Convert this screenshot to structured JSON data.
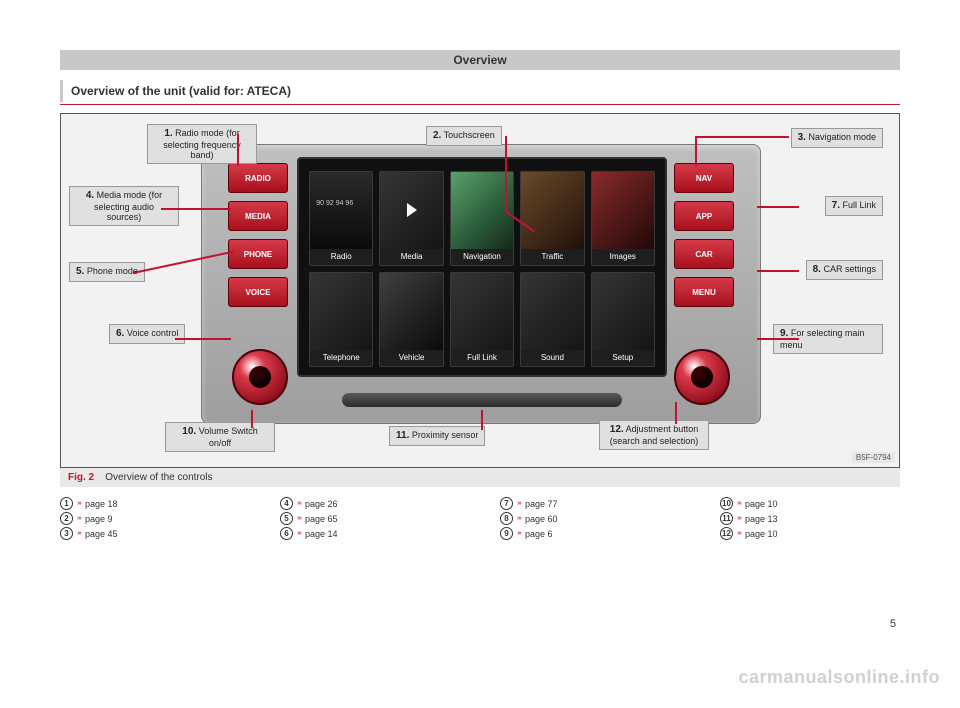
{
  "header": {
    "title": "Overview"
  },
  "subheading": "Overview of the unit (valid for: ATECA)",
  "figure": {
    "code": "B5F-0794",
    "caption_prefix": "Fig. 2",
    "caption_text": "Overview of the controls"
  },
  "hard_buttons_left": [
    "RADIO",
    "MEDIA",
    "PHONE",
    "VOICE"
  ],
  "hard_buttons_right": [
    "NAV",
    "APP",
    "CAR",
    "MENU"
  ],
  "tiles": [
    {
      "label": "Radio",
      "cls": "radio",
      "freq": "90  92  94  96"
    },
    {
      "label": "Media",
      "cls": "media"
    },
    {
      "label": "Navigation",
      "cls": "nav"
    },
    {
      "label": "Traffic",
      "cls": "traffic"
    },
    {
      "label": "Images",
      "cls": "images"
    },
    {
      "label": "Telephone",
      "cls": ""
    },
    {
      "label": "Vehicle",
      "cls": "vehicle"
    },
    {
      "label": "Full Link",
      "cls": ""
    },
    {
      "label": "Sound",
      "cls": ""
    },
    {
      "label": "Setup",
      "cls": ""
    }
  ],
  "callouts": [
    {
      "n": "1.",
      "text": "Radio mode (for selecting frequency band)",
      "style": "left:86px; top:10px; text-align:center;"
    },
    {
      "n": "2.",
      "text": "Touchscreen",
      "style": "left:365px; top:12px;"
    },
    {
      "n": "3.",
      "text": "Navigation mode",
      "style": "right:16px; top:14px;"
    },
    {
      "n": "4.",
      "text": "Media mode (for selecting audio sources)",
      "style": "left:8px; top:72px; text-align:center;"
    },
    {
      "n": "5.",
      "text": "Phone mode",
      "style": "left:8px; top:148px;"
    },
    {
      "n": "6.",
      "text": "Voice control",
      "style": "left:48px; top:210px; text-align:center;"
    },
    {
      "n": "7.",
      "text": "Full Link",
      "style": "right:16px; top:82px;"
    },
    {
      "n": "8.",
      "text": "CAR settings",
      "style": "right:16px; top:146px;"
    },
    {
      "n": "9.",
      "text": "For selecting main menu",
      "style": "right:16px; top:210px;"
    },
    {
      "n": "10.",
      "text": "Volume Switch on/off",
      "style": "left:104px; top:308px; text-align:center;"
    },
    {
      "n": "11.",
      "text": "Proximity sensor",
      "style": "left:328px; top:312px;"
    },
    {
      "n": "12.",
      "text": "Adjustment button (search and selection)",
      "style": "left:538px; top:306px; text-align:center;"
    }
  ],
  "leaders": [
    {
      "style": "left:176px; top:20px; width:2px; height:32px;"
    },
    {
      "style": "left:444px; top:22px; width:2px; height:76px;"
    },
    {
      "style": "left:444px; top:96px; width:36px; height:2px; transform:rotate(35deg); transform-origin:left center;"
    },
    {
      "style": "left:634px; top:22px; width:2px; height:30px;"
    },
    {
      "style": "left:636px; top:22px; width:92px; height:2px;"
    },
    {
      "style": "left:100px; top:94px; width:70px; height:2px;"
    },
    {
      "style": "left:72px; top:158px; width:104px; height:2px; transform:rotate(-12deg); transform-origin:left center;"
    },
    {
      "style": "left:114px; top:224px; width:56px; height:2px;"
    },
    {
      "style": "left:696px; top:92px; width:42px; height:2px;"
    },
    {
      "style": "left:696px; top:156px; width:42px; height:2px;"
    },
    {
      "style": "left:696px; top:224px; width:42px; height:2px;"
    },
    {
      "style": "left:190px; top:296px; width:2px; height:18px;"
    },
    {
      "style": "left:420px; top:296px; width:2px; height:20px;"
    },
    {
      "style": "left:614px; top:288px; width:2px; height:22px;"
    }
  ],
  "ref_columns": [
    [
      {
        "n": "1",
        "p": "page 18"
      },
      {
        "n": "2",
        "p": "page 9"
      },
      {
        "n": "3",
        "p": "page 45"
      }
    ],
    [
      {
        "n": "4",
        "p": "page 26"
      },
      {
        "n": "5",
        "p": "page 65"
      },
      {
        "n": "6",
        "p": "page 14"
      }
    ],
    [
      {
        "n": "7",
        "p": "page 77"
      },
      {
        "n": "8",
        "p": "page 60"
      },
      {
        "n": "9",
        "p": "page 6"
      }
    ],
    [
      {
        "n": "10",
        "p": "page 10"
      },
      {
        "n": "11",
        "p": "page 13"
      },
      {
        "n": "12",
        "p": "page 10"
      }
    ]
  ],
  "page_number": "5",
  "watermark": "carmanualsonline.info",
  "tri": "›››"
}
